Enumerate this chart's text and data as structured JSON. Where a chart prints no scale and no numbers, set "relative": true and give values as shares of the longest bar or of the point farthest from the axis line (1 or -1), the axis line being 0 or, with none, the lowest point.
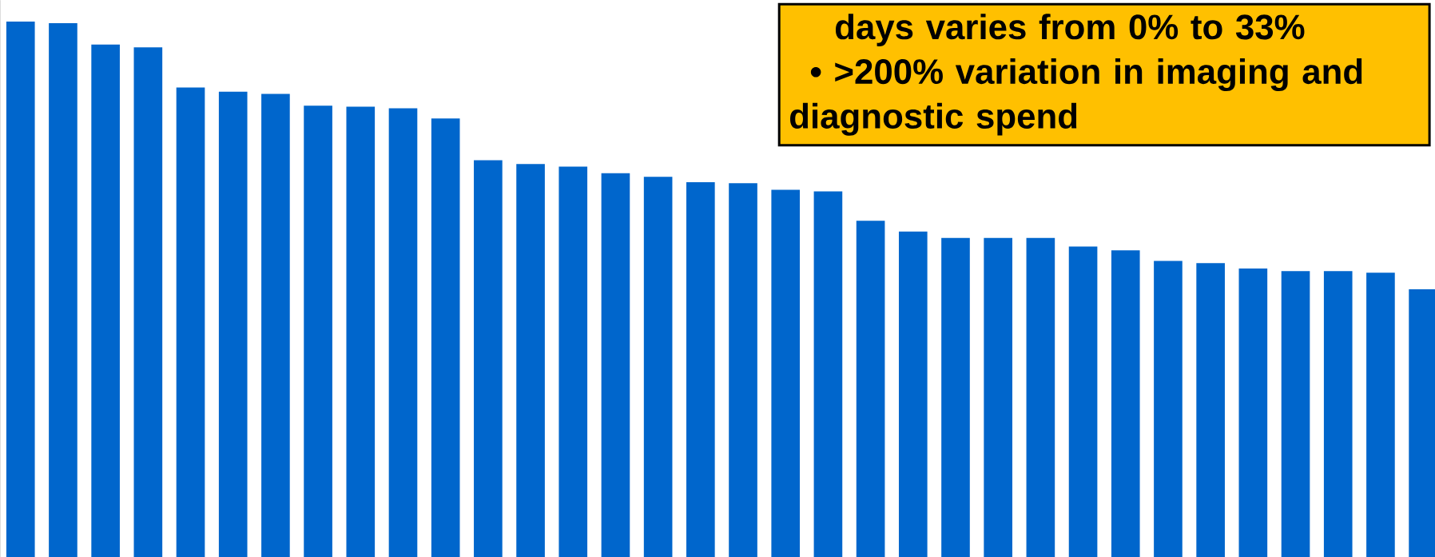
{
  "chart_data": {
    "type": "bar",
    "relative": true,
    "color": "#0066cc",
    "categories": [
      null,
      null,
      null,
      null,
      null,
      null,
      null,
      null,
      null,
      null,
      null,
      null,
      null,
      null,
      null,
      null,
      null,
      null,
      null,
      null,
      null,
      null,
      null,
      null,
      null,
      null,
      null,
      null,
      null,
      null,
      null,
      null,
      null,
      null
    ],
    "values": [
      1,
      0.997,
      0.957,
      0.952,
      0.877,
      0.869,
      0.865,
      0.843,
      0.841,
      0.838,
      0.819,
      0.741,
      0.734,
      0.729,
      0.717,
      0.71,
      0.7,
      0.698,
      0.686,
      0.683,
      0.628,
      0.608,
      0.596,
      0.596,
      0.596,
      0.58,
      0.573,
      0.553,
      0.549,
      0.539,
      0.534,
      0.534,
      0.531,
      0.5
    ],
    "annotations": [
      "days varies from 0% to 33%",
      "•  >200% variation in imaging and diagnostic spend"
    ]
  }
}
